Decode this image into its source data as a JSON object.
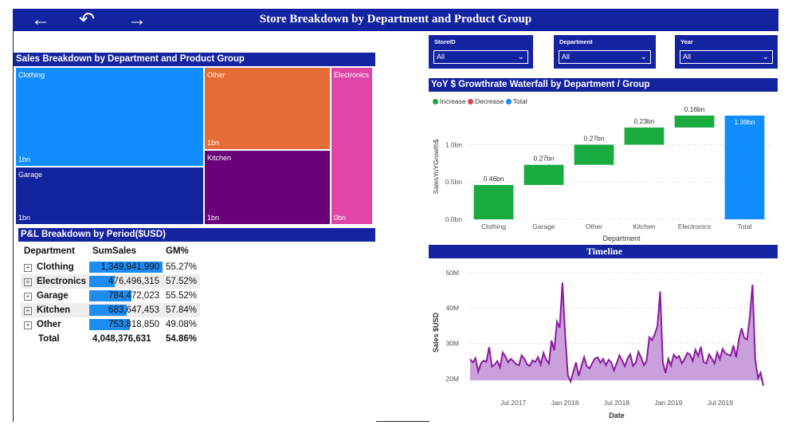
{
  "header": {
    "title": "Store Breakdown by Department and Product Group",
    "back_icon": "arrow-left-icon",
    "undo_icon": "undo-icon",
    "forward_icon": "arrow-right-icon"
  },
  "treemap": {
    "title": "Sales Breakdown by Department and Product Group",
    "tiles": [
      {
        "label": "Clothing",
        "value": "1bn",
        "color": "#118dff"
      },
      {
        "label": "Garage",
        "value": "1bn",
        "color": "#12239e"
      },
      {
        "label": "Other",
        "value": "1bn",
        "color": "#e66c37"
      },
      {
        "label": "Kitchen",
        "value": "1bn",
        "color": "#6b007b"
      },
      {
        "label": "Electronics",
        "value": "0bn",
        "color": "#e044a7"
      }
    ]
  },
  "slicers": [
    {
      "label": "StoreID",
      "value": "All"
    },
    {
      "label": "Department",
      "value": "All"
    },
    {
      "label": "Year",
      "value": "All"
    }
  ],
  "pl_table": {
    "title": "P&L Breakdown by Period($USD)",
    "columns": [
      "Department",
      "SumSales",
      "GM%"
    ],
    "rows": [
      {
        "department": "Clothing",
        "sum_sales": "1,349,941,990",
        "gm": "55.27%",
        "fraction": 1.0
      },
      {
        "department": "Electronics",
        "sum_sales": "476,496,315",
        "gm": "57.52%",
        "fraction": 0.353
      },
      {
        "department": "Garage",
        "sum_sales": "784,472,023",
        "gm": "55.52%",
        "fraction": 0.581
      },
      {
        "department": "Kitchen",
        "sum_sales": "683,647,453",
        "gm": "57.84%",
        "fraction": 0.506
      },
      {
        "department": "Other",
        "sum_sales": "753,818,850",
        "gm": "49.08%",
        "fraction": 0.558
      }
    ],
    "total": {
      "department": "Total",
      "sum_sales": "4,048,376,631",
      "gm": "54.86%"
    }
  },
  "waterfall": {
    "title": "YoY $ Growthrate Waterfall by Department / Group",
    "legend": [
      {
        "label": "Increase",
        "color": "#1aab40"
      },
      {
        "label": "Decrease",
        "color": "#d64550"
      },
      {
        "label": "Total",
        "color": "#118dff"
      }
    ]
  },
  "timeline": {
    "title": "Timeline"
  },
  "chart_data": [
    {
      "type": "treemap",
      "title": "Sales Breakdown by Department and Product Group",
      "categories": [
        "Clothing",
        "Garage",
        "Other",
        "Kitchen",
        "Electronics"
      ],
      "labels": [
        "1bn",
        "1bn",
        "1bn",
        "1bn",
        "0bn"
      ]
    },
    {
      "type": "bar",
      "subtype": "waterfall",
      "title": "YoY $ Growthrate Waterfall by Department / Group",
      "categories": [
        "Clothing",
        "Garage",
        "Other",
        "Kitchen",
        "Electronics",
        "Total"
      ],
      "values": [
        0.46,
        0.27,
        0.27,
        0.23,
        0.16,
        1.39
      ],
      "value_labels": [
        "0.46bn",
        "0.27bn",
        "0.27bn",
        "0.23bn",
        "0.16bn",
        "1.39bn"
      ],
      "kinds": [
        "increase",
        "increase",
        "increase",
        "increase",
        "increase",
        "total"
      ],
      "xlabel": "Department",
      "ylabel": "SalesYoYGrowth$",
      "yticks": [
        "0.0bn",
        "0.5bn",
        "1.0bn"
      ],
      "ylim": [
        0,
        1.4
      ],
      "legend_position": "top-left",
      "grid": true
    },
    {
      "type": "area",
      "title": "Timeline",
      "xlabel": "Date",
      "ylabel": "Sales $USD",
      "xticks": [
        "Jul 2017",
        "Jan 2018",
        "Jul 2018",
        "Jan 2019",
        "Jul 2019"
      ],
      "yticks": [
        "20M",
        "30M",
        "40M",
        "50M"
      ],
      "ylim": [
        15,
        52
      ],
      "x_start": "2017-02",
      "x_end": "2019-12",
      "series": [
        {
          "values": [
            25.5,
            24.6,
            25.8,
            22.0,
            24.3,
            25.1,
            24.8,
            28.9,
            23.4,
            24.0,
            25.0,
            23.2,
            27.4,
            26.3,
            24.6,
            25.6,
            24.9,
            24.1,
            23.8,
            26.6,
            25.6,
            24.0,
            23.6,
            25.2,
            24.7,
            26.1,
            24.0,
            27.3,
            25.4,
            24.3,
            30.8,
            28.0,
            36.1,
            34.4,
            47.2,
            32.4,
            21.0,
            19.2,
            21.9,
            24.6,
            20.8,
            23.6,
            26.1,
            23.5,
            22.9,
            24.4,
            25.7,
            26.0,
            24.5,
            25.6,
            23.8,
            25.3,
            24.6,
            22.3,
            24.4,
            26.6,
            25.1,
            23.5,
            25.7,
            26.9,
            23.6,
            24.5,
            27.6,
            25.9,
            23.8,
            25.1,
            31.7,
            30.9,
            32.5,
            34.9,
            44.7,
            24.5,
            21.6,
            25.6,
            23.7,
            26.8,
            25.8,
            26.4,
            24.3,
            25.6,
            27.3,
            26.8,
            25.0,
            28.2,
            26.4,
            29.0,
            24.7,
            24.3,
            26.9,
            25.7,
            24.3,
            27.4,
            25.5,
            28.4,
            27.2,
            26.8,
            26.5,
            29.4,
            26.0,
            31.1,
            34.3,
            31.5,
            31.1,
            37.5,
            46.6,
            25.6,
            20.2,
            21.7,
            18.0
          ]
        }
      ]
    }
  ]
}
